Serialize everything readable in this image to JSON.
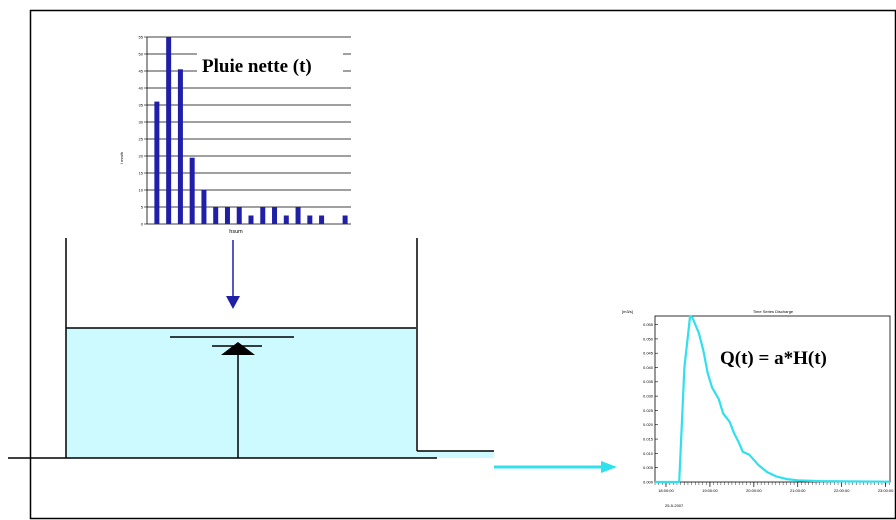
{
  "rain_chart": {
    "label": "Pluie nette (t)",
    "xlabel": "hsum",
    "ylabel": "I mm/h",
    "colors": {
      "bar": "#1f1fa8",
      "grid": "#000000"
    },
    "chart_data": {
      "type": "bar",
      "ylim": [
        0,
        55
      ],
      "yticks": [
        "0",
        "5",
        "10",
        "15",
        "20",
        "25",
        "30",
        "35",
        "40",
        "45",
        "50",
        "55"
      ],
      "values": [
        36,
        55,
        45.5,
        19.5,
        10,
        5,
        5,
        5,
        2.5,
        5,
        5,
        2.5,
        5,
        2.5,
        2.5,
        0,
        2.5
      ],
      "grid": true
    }
  },
  "discharge_chart": {
    "title": "Time Series Discharge",
    "unit": "[m3/s]",
    "equation": "Q(t) = a*H(t)",
    "date": "25-5-2007",
    "colors": {
      "line": "#30e0ec"
    },
    "chart_data": {
      "type": "line",
      "ylim": [
        0,
        0.058
      ],
      "yticks": [
        "0.000",
        "0.005",
        "0.010",
        "0.015",
        "0.020",
        "0.025",
        "0.030",
        "0.035",
        "0.040",
        "0.045",
        "0.050",
        "0.055"
      ],
      "xticks": [
        "18:00:00",
        "19:00:00",
        "20:00:00",
        "21:00:00",
        "22:00:00",
        "23:00:00"
      ],
      "xlim_hours": [
        17.75,
        23.1
      ],
      "series": [
        {
          "x_hours": [
            17.75,
            18.3,
            18.42,
            18.55,
            18.6,
            18.75,
            18.85,
            18.95,
            19.05,
            19.2,
            19.3,
            19.45,
            19.55,
            19.65,
            19.75,
            19.9,
            20.1,
            20.3,
            20.5,
            20.75,
            21.0,
            21.5,
            22.0,
            23.1
          ],
          "y": [
            0,
            0,
            0.04,
            0.058,
            0.0575,
            0.052,
            0.046,
            0.038,
            0.033,
            0.029,
            0.024,
            0.021,
            0.017,
            0.014,
            0.0105,
            0.0095,
            0.006,
            0.0035,
            0.002,
            0.001,
            0.0006,
            0.0003,
            0.0002,
            0.0001
          ]
        }
      ]
    }
  }
}
